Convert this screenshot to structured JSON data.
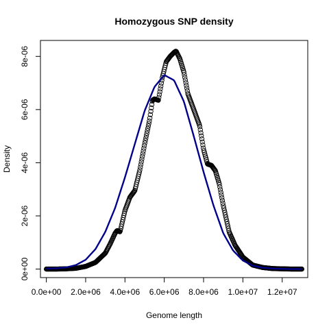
{
  "chart_data": {
    "type": "line",
    "title": "Homozygous SNP density",
    "xlabel": "Genome length",
    "ylabel": "Density",
    "xlim": [
      -300000,
      13300000
    ],
    "ylim": [
      -3.2e-07,
      8.6e-06
    ],
    "x_ticks": [
      {
        "value": 0,
        "label": "0.0e+00"
      },
      {
        "value": 2000000,
        "label": "2.0e+06"
      },
      {
        "value": 4000000,
        "label": "4.0e+06"
      },
      {
        "value": 6000000,
        "label": "6.0e+06"
      },
      {
        "value": 8000000,
        "label": "8.0e+06"
      },
      {
        "value": 10000000,
        "label": "1.0e+07"
      },
      {
        "value": 12000000,
        "label": "1.2e+07"
      }
    ],
    "y_ticks": [
      {
        "value": 0,
        "label": "0e+00"
      },
      {
        "value": 2e-06,
        "label": "2e-06"
      },
      {
        "value": 4e-06,
        "label": "4e-06"
      },
      {
        "value": 6e-06,
        "label": "6e-06"
      },
      {
        "value": 8e-06,
        "label": "8e-06"
      }
    ],
    "grid": false,
    "legend": "none",
    "series": [
      {
        "style": "points",
        "marker": "open-circle",
        "color": "#000000",
        "x": [
          0,
          500000,
          1000000,
          1500000,
          2000000,
          2500000,
          3000000,
          3250000,
          3500000,
          3600000,
          3750000,
          4000000,
          4250000,
          4500000,
          4750000,
          5000000,
          5250000,
          5400000,
          5500000,
          5700000,
          5900000,
          6100000,
          6300000,
          6500000,
          6600000,
          6800000,
          7000000,
          7200000,
          7500000,
          7800000,
          8000000,
          8200000,
          8400000,
          8600000,
          8800000,
          9000000,
          9300000,
          9600000,
          10000000,
          10500000,
          11000000,
          11500000,
          12000000,
          12500000,
          13000000
        ],
        "y": [
          0,
          0,
          1e-08,
          3e-08,
          1e-07,
          2.5e-07,
          6e-07,
          9.5e-07,
          1.35e-06,
          1.45e-06,
          1.4e-06,
          2.2e-06,
          2.7e-06,
          2.95e-06,
          3.7e-06,
          4.7e-06,
          5.6e-06,
          6.35e-06,
          6.4e-06,
          6.35e-06,
          7.2e-06,
          7.8e-06,
          8e-06,
          8.15e-06,
          8.2e-06,
          7.9e-06,
          7.4e-06,
          6.6e-06,
          6e-06,
          5.4e-06,
          4.5e-06,
          3.95e-06,
          3.9e-06,
          3.7e-06,
          3.2e-06,
          2.4e-06,
          1.4e-06,
          9e-07,
          4.5e-07,
          1.5e-07,
          6e-08,
          2e-08,
          1e-08,
          0,
          0
        ]
      },
      {
        "style": "line",
        "color": "#00008B",
        "x": [
          0,
          500000,
          1000000,
          1500000,
          2000000,
          2500000,
          3000000,
          3500000,
          4000000,
          4500000,
          5000000,
          5500000,
          6000000,
          6500000,
          7000000,
          7500000,
          8000000,
          8500000,
          9000000,
          9500000,
          10000000,
          10500000,
          11000000,
          11500000,
          12000000,
          12500000,
          13000000
        ],
        "y": [
          2e-08,
          3e-08,
          6e-08,
          1.5e-07,
          3.5e-07,
          7.5e-07,
          1.4e-06,
          2.3e-06,
          3.45e-06,
          4.7e-06,
          5.95e-06,
          6.85e-06,
          7.3e-06,
          7.1e-06,
          6.3e-06,
          5e-06,
          3.65e-06,
          2.4e-06,
          1.35e-06,
          7e-07,
          3.2e-07,
          1.3e-07,
          5e-08,
          2e-08,
          1e-08,
          0,
          0
        ]
      }
    ]
  }
}
